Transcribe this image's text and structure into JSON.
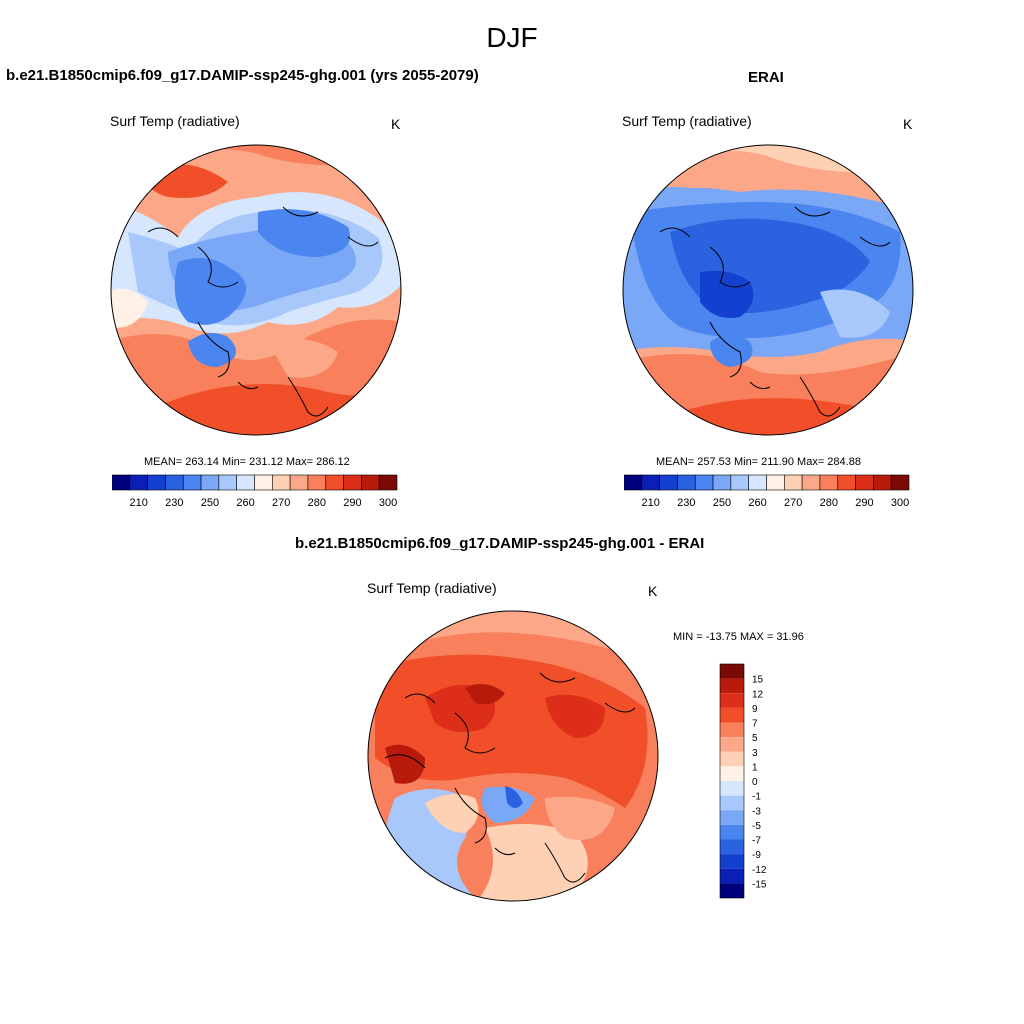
{
  "page": {
    "title": "DJF"
  },
  "colors": {
    "abs_scale": [
      "#00007a",
      "#0a1fb5",
      "#1440d0",
      "#2a62e0",
      "#4a85f0",
      "#7aa8f6",
      "#a8c8fb",
      "#d6e6fd",
      "#fff1e6",
      "#fed0b4",
      "#fca888",
      "#f8805c",
      "#f04f2a",
      "#dc2e18",
      "#b81a0c",
      "#7c0a04"
    ],
    "diff_scale": [
      "#00007a",
      "#0a1fb5",
      "#1440d0",
      "#2a62e0",
      "#4a85f0",
      "#7aa8f6",
      "#a8c8fb",
      "#d6e6fd",
      "#fff1e6",
      "#fed0b4",
      "#fca888",
      "#f8805c",
      "#f04f2a",
      "#dc2e18",
      "#b81a0c",
      "#7c0a04"
    ]
  },
  "panels": {
    "model": {
      "title": "b.e21.B1850cmip6.f09_g17.DAMIP-ssp245-ghg.001 (yrs 2055-2079)",
      "var_label": "Surf Temp (radiative)",
      "unit": "K",
      "stats": "MEAN= 263.14  Min= 231.12  Max= 286.12",
      "colorbar_ticks": [
        "210",
        "230",
        "250",
        "260",
        "270",
        "280",
        "290",
        "300"
      ]
    },
    "obs": {
      "title": "ERAI",
      "var_label": "Surf Temp (radiative)",
      "unit": "K",
      "stats": "MEAN= 257.53  Min= 211.90  Max= 284.88",
      "colorbar_ticks": [
        "210",
        "230",
        "250",
        "260",
        "270",
        "280",
        "290",
        "300"
      ]
    },
    "diff": {
      "title": "b.e21.B1850cmip6.f09_g17.DAMIP-ssp245-ghg.001 - ERAI",
      "var_label": "Surf Temp (radiative)",
      "unit": "K",
      "stats": "MIN = -13.75 MAX =  31.96",
      "colorbar_ticks": [
        "15",
        "12",
        "9",
        "7",
        "5",
        "3",
        "1",
        "0",
        "-1",
        "-3",
        "-5",
        "-7",
        "-9",
        "-12",
        "-15"
      ]
    }
  }
}
